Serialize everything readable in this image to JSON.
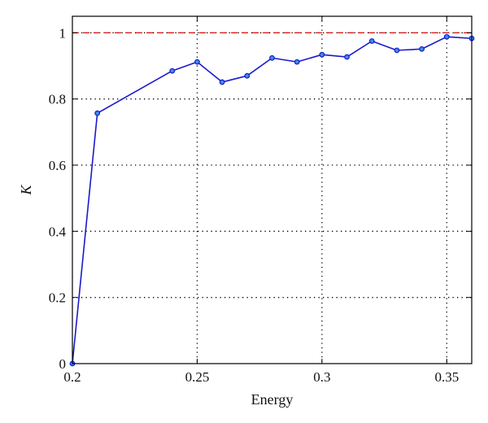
{
  "chart_data": {
    "type": "line",
    "title": "",
    "xlabel": "Energy",
    "ylabel": "K",
    "xlim": [
      0.2,
      0.36
    ],
    "ylim": [
      0,
      1.05
    ],
    "grid": true,
    "x_ticks": [
      0.2,
      0.25,
      0.3,
      0.35
    ],
    "x_tick_labels": [
      "0.2",
      "0.25",
      "0.3",
      "0.35"
    ],
    "y_ticks": [
      0,
      0.2,
      0.4,
      0.6,
      0.8,
      1
    ],
    "y_tick_labels": [
      "0",
      "0.2",
      "0.4",
      "0.6",
      "0.8",
      "1"
    ],
    "series": [
      {
        "x": [
          0.2,
          0.21,
          0.24,
          0.25,
          0.26,
          0.27,
          0.28,
          0.29,
          0.3,
          0.31,
          0.32,
          0.33,
          0.34,
          0.35,
          0.36
        ],
        "y": [
          0.0,
          0.757,
          0.885,
          0.912,
          0.851,
          0.87,
          0.924,
          0.912,
          0.934,
          0.927,
          0.975,
          0.947,
          0.951,
          0.988,
          0.983
        ],
        "color": "#1a1acc",
        "marker": "circle",
        "marker_face": "#3a8ee6"
      }
    ],
    "reference_lines": [
      {
        "y": 1.0,
        "style": "dashed",
        "color": "#e02020"
      }
    ]
  }
}
